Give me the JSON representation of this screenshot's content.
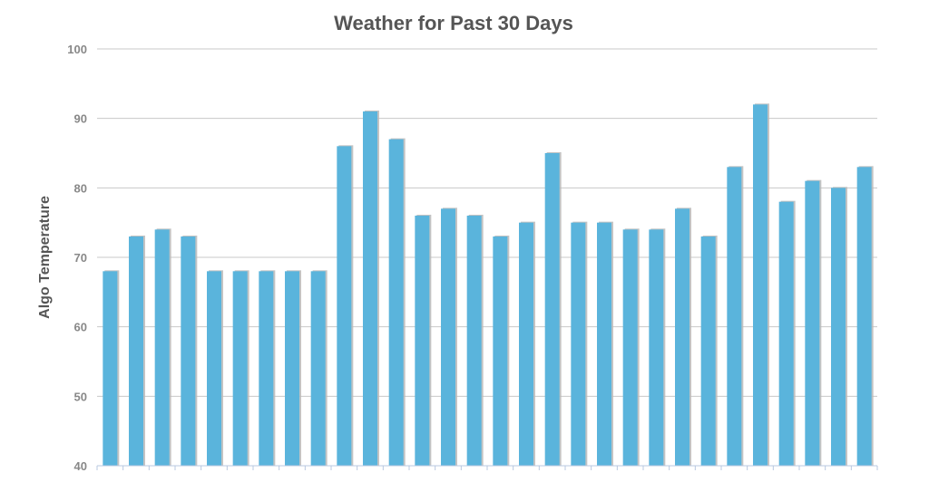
{
  "chart_data": {
    "type": "bar",
    "title": "Weather for Past 30 Days",
    "xlabel": "",
    "ylabel": "Algo Temperature",
    "ylim": [
      40,
      100
    ],
    "yticks": [
      40,
      50,
      60,
      70,
      80,
      90,
      100
    ],
    "grid": true,
    "bar_color": "#5ab4dc",
    "values": [
      68,
      73,
      74,
      73,
      68,
      68,
      68,
      68,
      68,
      86,
      91,
      87,
      76,
      77,
      76,
      73,
      75,
      85,
      75,
      75,
      74,
      74,
      77,
      73,
      83,
      92,
      78,
      81,
      80,
      83
    ]
  }
}
